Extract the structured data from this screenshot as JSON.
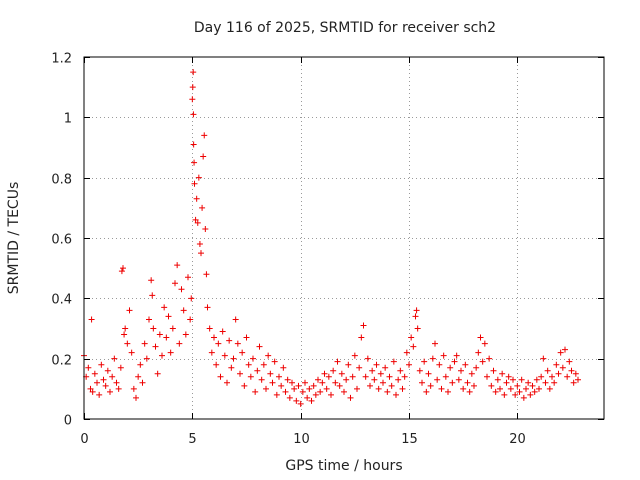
{
  "chart_data": {
    "type": "scatter",
    "title": "Day 116 of 2025, SRMTID for receiver sch2",
    "xlabel": "GPS time / hours",
    "ylabel": "SRMTID / TECUs",
    "xlim": [
      0,
      24
    ],
    "ylim": [
      0,
      1.2
    ],
    "xticks": [
      0,
      5,
      10,
      15,
      20
    ],
    "xtick_labels": [
      "0",
      "5",
      "10",
      "15",
      "20"
    ],
    "yticks": [
      0,
      0.2,
      0.4,
      0.6,
      0.8,
      1,
      1.2
    ],
    "ytick_labels": [
      "0",
      "0.2",
      "0.4",
      "0.6",
      "0.8",
      "1",
      "1.2"
    ],
    "grid": true,
    "marker": "+",
    "color": "#ee0000",
    "series": [
      {
        "name": "sch2",
        "points": [
          [
            0.0,
            0.21
          ],
          [
            0.1,
            0.14
          ],
          [
            0.2,
            0.17
          ],
          [
            0.3,
            0.1
          ],
          [
            0.35,
            0.33
          ],
          [
            0.4,
            0.09
          ],
          [
            0.5,
            0.15
          ],
          [
            0.6,
            0.12
          ],
          [
            0.7,
            0.08
          ],
          [
            0.8,
            0.18
          ],
          [
            0.9,
            0.13
          ],
          [
            1.0,
            0.11
          ],
          [
            1.1,
            0.16
          ],
          [
            1.2,
            0.09
          ],
          [
            1.3,
            0.14
          ],
          [
            1.4,
            0.2
          ],
          [
            1.5,
            0.12
          ],
          [
            1.6,
            0.1
          ],
          [
            1.7,
            0.17
          ],
          [
            1.75,
            0.49
          ],
          [
            1.8,
            0.5
          ],
          [
            1.85,
            0.28
          ],
          [
            1.9,
            0.3
          ],
          [
            2.0,
            0.25
          ],
          [
            2.1,
            0.36
          ],
          [
            2.2,
            0.22
          ],
          [
            2.3,
            0.1
          ],
          [
            2.4,
            0.07
          ],
          [
            2.5,
            0.14
          ],
          [
            2.6,
            0.18
          ],
          [
            2.7,
            0.12
          ],
          [
            2.8,
            0.25
          ],
          [
            2.9,
            0.2
          ],
          [
            3.0,
            0.33
          ],
          [
            3.1,
            0.46
          ],
          [
            3.15,
            0.41
          ],
          [
            3.2,
            0.3
          ],
          [
            3.3,
            0.24
          ],
          [
            3.4,
            0.15
          ],
          [
            3.5,
            0.28
          ],
          [
            3.6,
            0.21
          ],
          [
            3.7,
            0.37
          ],
          [
            3.8,
            0.27
          ],
          [
            3.9,
            0.34
          ],
          [
            4.0,
            0.22
          ],
          [
            4.1,
            0.3
          ],
          [
            4.2,
            0.45
          ],
          [
            4.3,
            0.51
          ],
          [
            4.4,
            0.25
          ],
          [
            4.5,
            0.43
          ],
          [
            4.6,
            0.36
          ],
          [
            4.7,
            0.28
          ],
          [
            4.8,
            0.47
          ],
          [
            4.9,
            0.33
          ],
          [
            4.95,
            0.4
          ],
          [
            5.0,
            1.06
          ],
          [
            5.02,
            1.1
          ],
          [
            5.04,
            1.15
          ],
          [
            5.05,
            1.01
          ],
          [
            5.06,
            0.91
          ],
          [
            5.08,
            0.85
          ],
          [
            5.1,
            0.78
          ],
          [
            5.15,
            0.66
          ],
          [
            5.2,
            0.73
          ],
          [
            5.25,
            0.65
          ],
          [
            5.3,
            0.8
          ],
          [
            5.35,
            0.58
          ],
          [
            5.4,
            0.55
          ],
          [
            5.45,
            0.7
          ],
          [
            5.5,
            0.87
          ],
          [
            5.55,
            0.94
          ],
          [
            5.6,
            0.63
          ],
          [
            5.65,
            0.48
          ],
          [
            5.7,
            0.37
          ],
          [
            5.8,
            0.3
          ],
          [
            5.9,
            0.22
          ],
          [
            6.0,
            0.27
          ],
          [
            6.1,
            0.18
          ],
          [
            6.2,
            0.25
          ],
          [
            6.3,
            0.14
          ],
          [
            6.4,
            0.29
          ],
          [
            6.5,
            0.21
          ],
          [
            6.6,
            0.12
          ],
          [
            6.7,
            0.26
          ],
          [
            6.8,
            0.17
          ],
          [
            6.9,
            0.2
          ],
          [
            7.0,
            0.33
          ],
          [
            7.1,
            0.25
          ],
          [
            7.2,
            0.15
          ],
          [
            7.3,
            0.22
          ],
          [
            7.4,
            0.11
          ],
          [
            7.5,
            0.27
          ],
          [
            7.6,
            0.18
          ],
          [
            7.7,
            0.14
          ],
          [
            7.8,
            0.2
          ],
          [
            7.9,
            0.09
          ],
          [
            8.0,
            0.16
          ],
          [
            8.1,
            0.24
          ],
          [
            8.2,
            0.13
          ],
          [
            8.3,
            0.18
          ],
          [
            8.4,
            0.1
          ],
          [
            8.5,
            0.21
          ],
          [
            8.6,
            0.15
          ],
          [
            8.7,
            0.12
          ],
          [
            8.8,
            0.19
          ],
          [
            8.9,
            0.08
          ],
          [
            9.0,
            0.14
          ],
          [
            9.1,
            0.11
          ],
          [
            9.2,
            0.17
          ],
          [
            9.3,
            0.09
          ],
          [
            9.4,
            0.13
          ],
          [
            9.5,
            0.07
          ],
          [
            9.6,
            0.12
          ],
          [
            9.7,
            0.1
          ],
          [
            9.8,
            0.06
          ],
          [
            9.9,
            0.11
          ],
          [
            10.0,
            0.05
          ],
          [
            10.1,
            0.09
          ],
          [
            10.2,
            0.12
          ],
          [
            10.3,
            0.07
          ],
          [
            10.4,
            0.1
          ],
          [
            10.5,
            0.06
          ],
          [
            10.6,
            0.11
          ],
          [
            10.7,
            0.08
          ],
          [
            10.8,
            0.13
          ],
          [
            10.9,
            0.09
          ],
          [
            11.0,
            0.12
          ],
          [
            11.1,
            0.15
          ],
          [
            11.2,
            0.1
          ],
          [
            11.3,
            0.14
          ],
          [
            11.4,
            0.08
          ],
          [
            11.5,
            0.16
          ],
          [
            11.6,
            0.12
          ],
          [
            11.7,
            0.19
          ],
          [
            11.8,
            0.11
          ],
          [
            11.9,
            0.15
          ],
          [
            12.0,
            0.09
          ],
          [
            12.1,
            0.13
          ],
          [
            12.2,
            0.18
          ],
          [
            12.3,
            0.07
          ],
          [
            12.4,
            0.14
          ],
          [
            12.5,
            0.21
          ],
          [
            12.6,
            0.1
          ],
          [
            12.7,
            0.17
          ],
          [
            12.8,
            0.27
          ],
          [
            12.9,
            0.31
          ],
          [
            13.0,
            0.14
          ],
          [
            13.1,
            0.2
          ],
          [
            13.2,
            0.11
          ],
          [
            13.3,
            0.16
          ],
          [
            13.4,
            0.13
          ],
          [
            13.5,
            0.18
          ],
          [
            13.6,
            0.1
          ],
          [
            13.7,
            0.15
          ],
          [
            13.8,
            0.12
          ],
          [
            13.9,
            0.17
          ],
          [
            14.0,
            0.09
          ],
          [
            14.1,
            0.14
          ],
          [
            14.2,
            0.11
          ],
          [
            14.3,
            0.19
          ],
          [
            14.4,
            0.08
          ],
          [
            14.5,
            0.13
          ],
          [
            14.6,
            0.16
          ],
          [
            14.7,
            0.1
          ],
          [
            14.8,
            0.14
          ],
          [
            14.9,
            0.22
          ],
          [
            15.0,
            0.18
          ],
          [
            15.1,
            0.27
          ],
          [
            15.2,
            0.24
          ],
          [
            15.3,
            0.34
          ],
          [
            15.35,
            0.36
          ],
          [
            15.4,
            0.3
          ],
          [
            15.5,
            0.16
          ],
          [
            15.6,
            0.12
          ],
          [
            15.7,
            0.19
          ],
          [
            15.8,
            0.09
          ],
          [
            15.9,
            0.15
          ],
          [
            16.0,
            0.11
          ],
          [
            16.1,
            0.2
          ],
          [
            16.2,
            0.25
          ],
          [
            16.3,
            0.13
          ],
          [
            16.4,
            0.18
          ],
          [
            16.5,
            0.1
          ],
          [
            16.6,
            0.21
          ],
          [
            16.7,
            0.14
          ],
          [
            16.8,
            0.09
          ],
          [
            16.9,
            0.17
          ],
          [
            17.0,
            0.12
          ],
          [
            17.1,
            0.19
          ],
          [
            17.2,
            0.21
          ],
          [
            17.3,
            0.13
          ],
          [
            17.4,
            0.16
          ],
          [
            17.5,
            0.1
          ],
          [
            17.6,
            0.18
          ],
          [
            17.7,
            0.12
          ],
          [
            17.8,
            0.09
          ],
          [
            17.9,
            0.15
          ],
          [
            18.0,
            0.11
          ],
          [
            18.1,
            0.17
          ],
          [
            18.2,
            0.22
          ],
          [
            18.3,
            0.27
          ],
          [
            18.4,
            0.19
          ],
          [
            18.5,
            0.25
          ],
          [
            18.6,
            0.14
          ],
          [
            18.7,
            0.2
          ],
          [
            18.8,
            0.11
          ],
          [
            18.9,
            0.16
          ],
          [
            19.0,
            0.09
          ],
          [
            19.1,
            0.13
          ],
          [
            19.2,
            0.1
          ],
          [
            19.3,
            0.15
          ],
          [
            19.4,
            0.08
          ],
          [
            19.5,
            0.12
          ],
          [
            19.6,
            0.14
          ],
          [
            19.7,
            0.1
          ],
          [
            19.8,
            0.13
          ],
          [
            19.9,
            0.08
          ],
          [
            20.0,
            0.11
          ],
          [
            20.1,
            0.09
          ],
          [
            20.2,
            0.13
          ],
          [
            20.3,
            0.07
          ],
          [
            20.4,
            0.1
          ],
          [
            20.5,
            0.12
          ],
          [
            20.6,
            0.08
          ],
          [
            20.7,
            0.11
          ],
          [
            20.8,
            0.09
          ],
          [
            20.9,
            0.13
          ],
          [
            21.0,
            0.1
          ],
          [
            21.1,
            0.14
          ],
          [
            21.2,
            0.2
          ],
          [
            21.3,
            0.12
          ],
          [
            21.4,
            0.16
          ],
          [
            21.5,
            0.1
          ],
          [
            21.6,
            0.14
          ],
          [
            21.7,
            0.12
          ],
          [
            21.8,
            0.18
          ],
          [
            21.9,
            0.15
          ],
          [
            22.0,
            0.22
          ],
          [
            22.1,
            0.17
          ],
          [
            22.2,
            0.23
          ],
          [
            22.3,
            0.14
          ],
          [
            22.4,
            0.19
          ],
          [
            22.5,
            0.16
          ],
          [
            22.6,
            0.12
          ],
          [
            22.7,
            0.15
          ],
          [
            22.8,
            0.13
          ]
        ]
      }
    ]
  }
}
